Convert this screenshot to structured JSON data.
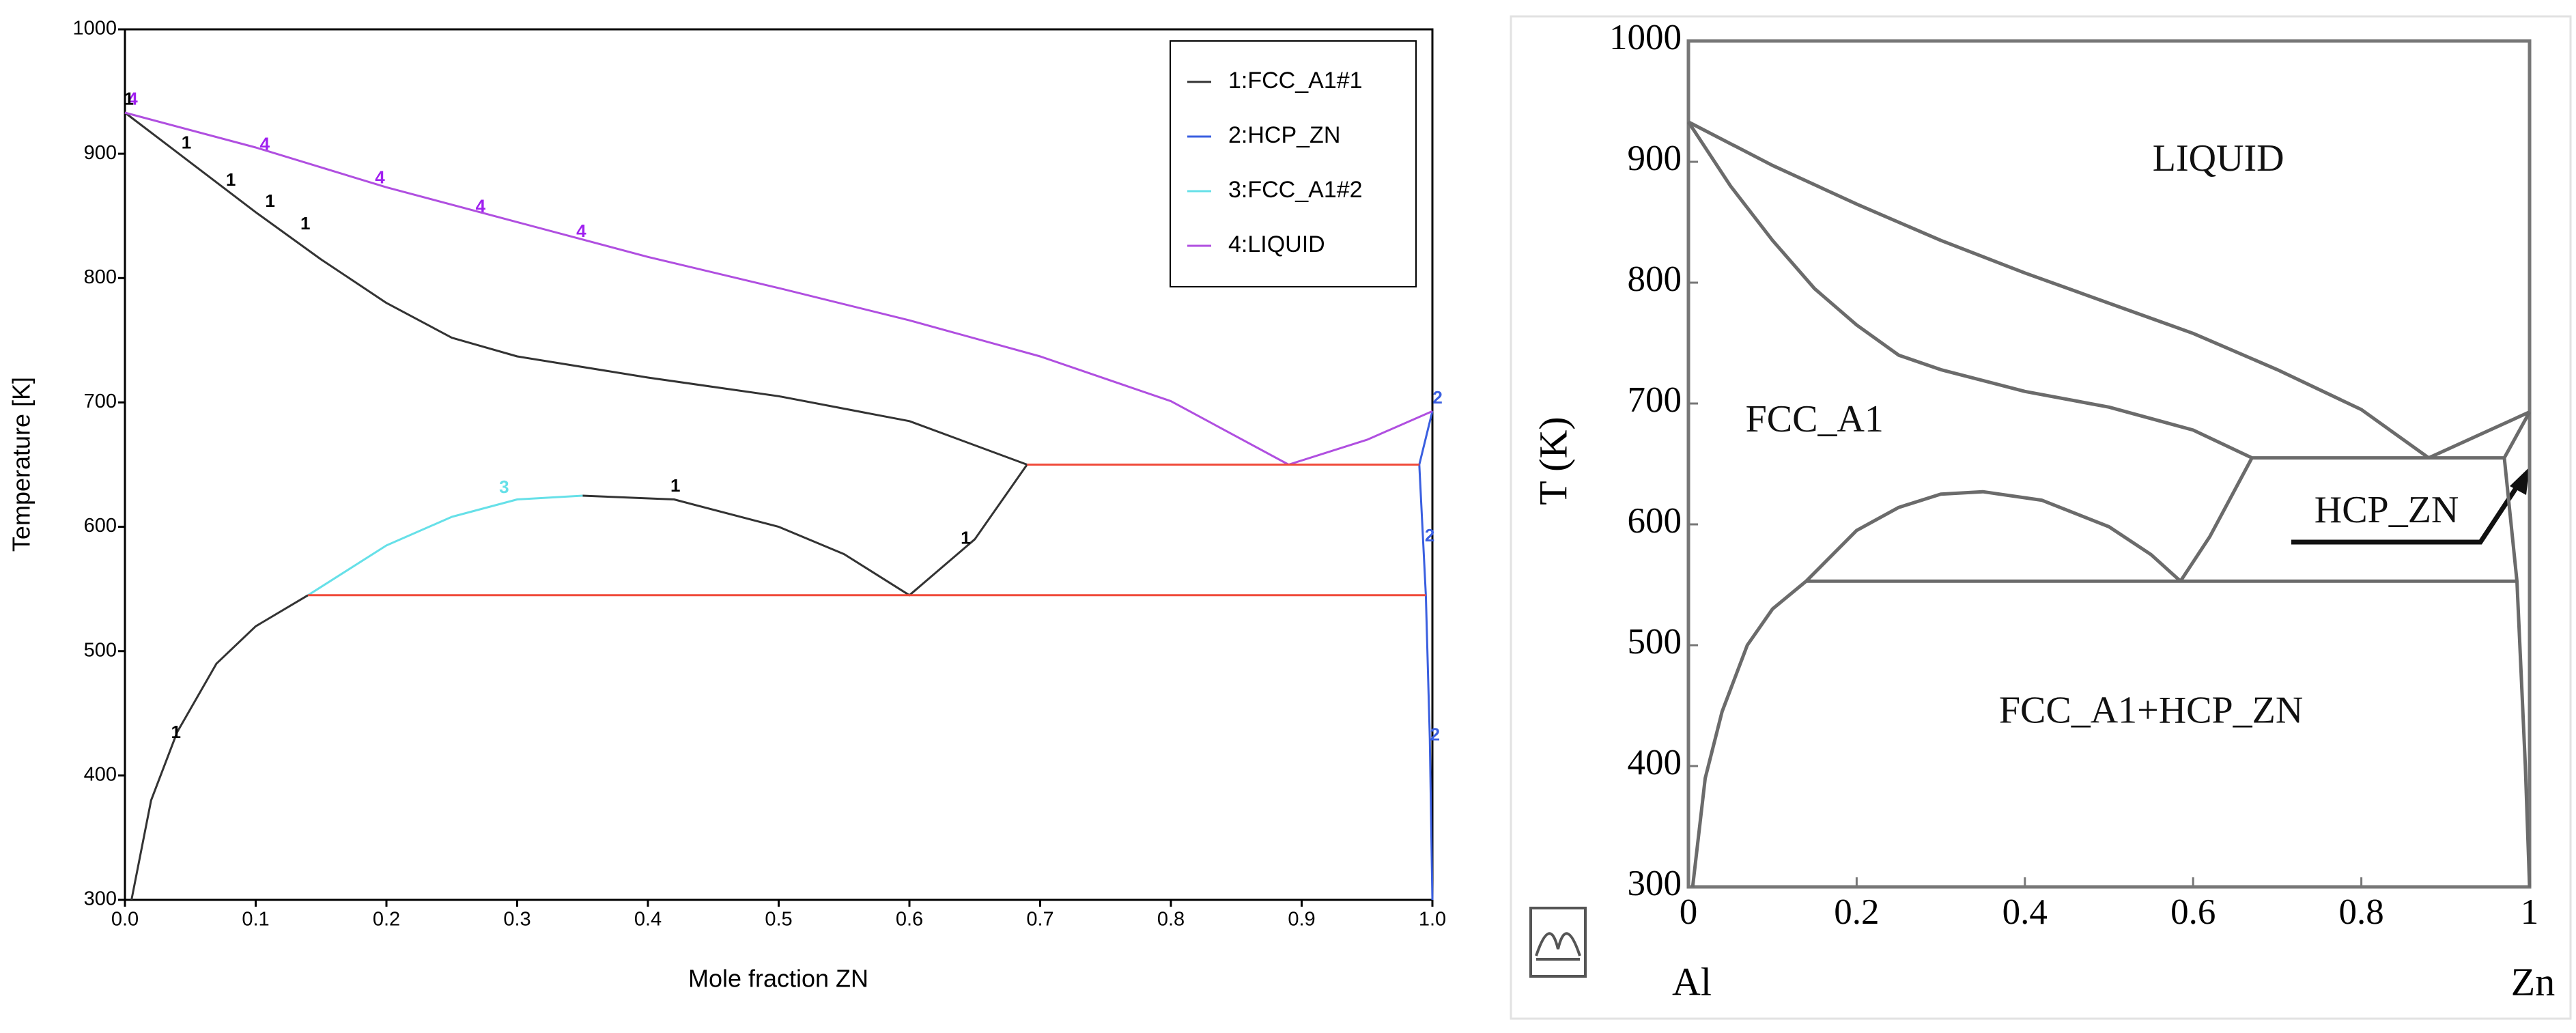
{
  "chart_data": [
    {
      "type": "line",
      "x_label": "Mole fraction ZN",
      "y_label": "Temperature [K]",
      "xlim": [
        0,
        1.0
      ],
      "ylim": [
        300,
        1000
      ],
      "xticks": [
        {
          "value": 0,
          "label": "0.0"
        },
        0.1,
        0.2,
        0.3,
        0.4,
        0.5,
        0.6,
        0.7,
        0.8,
        0.9,
        {
          "value": 1,
          "label": "1.0"
        }
      ],
      "yticks": [
        300,
        400,
        500,
        600,
        700,
        800,
        900,
        1000
      ],
      "grid": false,
      "legend": "upper right",
      "series": [
        {
          "name": "1:FCC_A1#1",
          "color": "#333333",
          "x": [
            0,
            0.05,
            0.1,
            0.15,
            0.2,
            0.25,
            0.3,
            0.4,
            0.5,
            0.6,
            0.69,
            null,
            0.69,
            0.65,
            0.6,
            0.55,
            0.5,
            0.42,
            0.35,
            null,
            0.005,
            0.02,
            0.04,
            0.07,
            0.1,
            0.14
          ],
          "values": [
            933,
            893,
            853,
            815,
            780,
            752,
            737,
            720,
            705,
            685,
            650,
            null,
            650,
            590,
            545,
            578,
            600,
            622,
            625,
            null,
            300,
            380,
            435,
            490,
            520,
            545
          ]
        },
        {
          "name": "2:HCP_ZN",
          "color": "#3a5fe0",
          "x": [
            0.99,
            1.0,
            null,
            0.99,
            0.995,
            0.998,
            1.0
          ],
          "values": [
            650,
            693,
            null,
            650,
            545,
            430,
            300
          ]
        },
        {
          "name": "3:FCC_A1#2",
          "color": "#66e0e8",
          "x": [
            0.14,
            0.2,
            0.25,
            0.3,
            0.35
          ],
          "values": [
            545,
            585,
            608,
            622,
            625
          ]
        },
        {
          "name": "4:LIQUID",
          "color": "#b04fe0",
          "x": [
            0,
            0.1,
            0.2,
            0.3,
            0.4,
            0.5,
            0.6,
            0.7,
            0.8,
            0.89,
            0.95,
            1.0
          ],
          "values": [
            933,
            905,
            873,
            845,
            817,
            792,
            766,
            737,
            701,
            650,
            670,
            693
          ]
        },
        {
          "color": "#f04a3a",
          "x": [
            0.69,
            0.99,
            null,
            0.14,
            0.995
          ],
          "values": [
            650,
            650,
            null,
            545,
            545
          ]
        }
      ],
      "annotations": [
        {
          "text": "4",
          "x": 0.006,
          "y": 943,
          "color": "#a020f0"
        },
        {
          "text": "1",
          "x": 0.003,
          "y": 943,
          "color": "#000000"
        },
        {
          "text": "1",
          "x": 0.047,
          "y": 908,
          "color": "#000000"
        },
        {
          "text": "4",
          "x": 0.107,
          "y": 907,
          "color": "#a020f0"
        },
        {
          "text": "1",
          "x": 0.081,
          "y": 878,
          "color": "#000000"
        },
        {
          "text": "1",
          "x": 0.111,
          "y": 861,
          "color": "#000000"
        },
        {
          "text": "1",
          "x": 0.138,
          "y": 843,
          "color": "#000000"
        },
        {
          "text": "4",
          "x": 0.195,
          "y": 880,
          "color": "#a020f0"
        },
        {
          "text": "4",
          "x": 0.272,
          "y": 857,
          "color": "#a020f0"
        },
        {
          "text": "4",
          "x": 0.349,
          "y": 837,
          "color": "#a020f0"
        },
        {
          "text": "3",
          "x": 0.29,
          "y": 631,
          "color": "#66e0e8"
        },
        {
          "text": "1",
          "x": 0.421,
          "y": 632,
          "color": "#000000"
        },
        {
          "text": "1",
          "x": 0.643,
          "y": 590,
          "color": "#000000"
        },
        {
          "text": "1",
          "x": 0.039,
          "y": 434,
          "color": "#000000"
        },
        {
          "text": "2",
          "x": 1.004,
          "y": 703,
          "color": "#3a5fe0"
        },
        {
          "text": "2",
          "x": 0.998,
          "y": 592,
          "color": "#3a5fe0"
        },
        {
          "text": "2",
          "x": 1.002,
          "y": 432,
          "color": "#3a5fe0"
        }
      ]
    },
    {
      "type": "line",
      "y_label": "T (K)",
      "x_left_label": "Al",
      "x_right_label": "Zn",
      "xlim": [
        0,
        1
      ],
      "ylim": [
        300,
        1000
      ],
      "xticks": [
        0,
        0.2,
        0.4,
        0.6,
        0.8,
        1
      ],
      "yticks": [
        300,
        400,
        500,
        600,
        700,
        800,
        900,
        1000
      ],
      "grid": false,
      "series": [
        {
          "color": "#6b6b6b",
          "x": [
            0,
            0.1,
            0.2,
            0.3,
            0.4,
            0.5,
            0.6,
            0.7,
            0.8,
            0.88,
            1.0,
            null,
            0,
            0.05,
            0.1,
            0.15,
            0.2,
            0.25,
            0.3,
            0.4,
            0.5,
            0.6,
            0.67,
            null,
            0.005,
            0.02,
            0.04,
            0.07,
            0.1,
            0.14,
            0.2,
            0.25,
            0.3,
            0.35,
            0.42,
            0.5,
            0.55,
            0.585,
            0.62,
            0.67,
            null,
            0.67,
            0.97,
            1.0,
            null,
            0.14,
            0.985,
            null,
            0.97,
            0.985,
            0.995,
            1.0
          ],
          "values": [
            933,
            897,
            865,
            835,
            808,
            783,
            758,
            728,
            695,
            655,
            693,
            null,
            933,
            880,
            835,
            795,
            765,
            740,
            728,
            710,
            697,
            678,
            655,
            null,
            300,
            390,
            445,
            500,
            530,
            553,
            595,
            614,
            625,
            627,
            620,
            598,
            575,
            553,
            590,
            655,
            null,
            655,
            655,
            693,
            null,
            553,
            553,
            null,
            655,
            553,
            400,
            300
          ]
        }
      ],
      "annotations": [
        {
          "text": "LIQUID",
          "x": 0.63,
          "y": 900
        },
        {
          "text": "FCC_A1",
          "x": 0.15,
          "y": 684
        },
        {
          "text": "HCP_ZN",
          "x": 0.83,
          "y": 609
        },
        {
          "text": "FCC_A1+HCP_ZN",
          "x": 0.55,
          "y": 443
        }
      ]
    }
  ]
}
